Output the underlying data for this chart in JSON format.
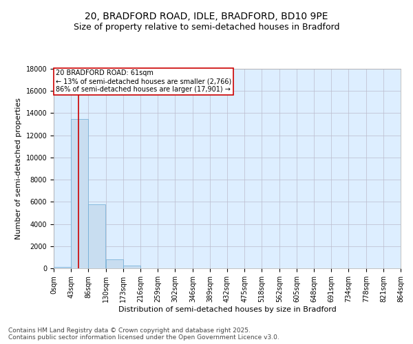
{
  "title_line1": "20, BRADFORD ROAD, IDLE, BRADFORD, BD10 9PE",
  "title_line2": "Size of property relative to semi-detached houses in Bradford",
  "xlabel": "Distribution of semi-detached houses by size in Bradford",
  "ylabel": "Number of semi-detached properties",
  "footnote1": "Contains HM Land Registry data © Crown copyright and database right 2025.",
  "footnote2": "Contains public sector information licensed under the Open Government Licence v3.0.",
  "annotation_title": "20 BRADFORD ROAD: 61sqm",
  "annotation_line2": "← 13% of semi-detached houses are smaller (2,766)",
  "annotation_line3": "86% of semi-detached houses are larger (17,901) →",
  "property_size": 61,
  "bin_edges": [
    0,
    43,
    86,
    130,
    173,
    216,
    259,
    302,
    346,
    389,
    432,
    475,
    518,
    562,
    605,
    648,
    691,
    734,
    778,
    821,
    864
  ],
  "bin_labels": [
    "0sqm",
    "43sqm",
    "86sqm",
    "130sqm",
    "173sqm",
    "216sqm",
    "259sqm",
    "302sqm",
    "346sqm",
    "389sqm",
    "432sqm",
    "475sqm",
    "518sqm",
    "562sqm",
    "605sqm",
    "648sqm",
    "691sqm",
    "734sqm",
    "778sqm",
    "821sqm",
    "864sqm"
  ],
  "counts": [
    150,
    13500,
    5800,
    800,
    250,
    0,
    0,
    0,
    0,
    0,
    0,
    0,
    0,
    0,
    0,
    0,
    0,
    0,
    0,
    0
  ],
  "bar_color": "#c8ddf0",
  "bar_edge_color": "#6aaad4",
  "vline_color": "#cc0000",
  "vline_x": 61,
  "annotation_box_color": "#ffffff",
  "annotation_box_edge": "#cc0000",
  "ylim": [
    0,
    18000
  ],
  "yticks": [
    0,
    2000,
    4000,
    6000,
    8000,
    10000,
    12000,
    14000,
    16000,
    18000
  ],
  "background_color": "#ffffff",
  "plot_bg_color": "#ddeeff",
  "grid_color": "#bbbbcc",
  "title_fontsize": 10,
  "subtitle_fontsize": 9,
  "axis_label_fontsize": 8,
  "tick_fontsize": 7,
  "annotation_fontsize": 7,
  "footnote_fontsize": 6.5
}
